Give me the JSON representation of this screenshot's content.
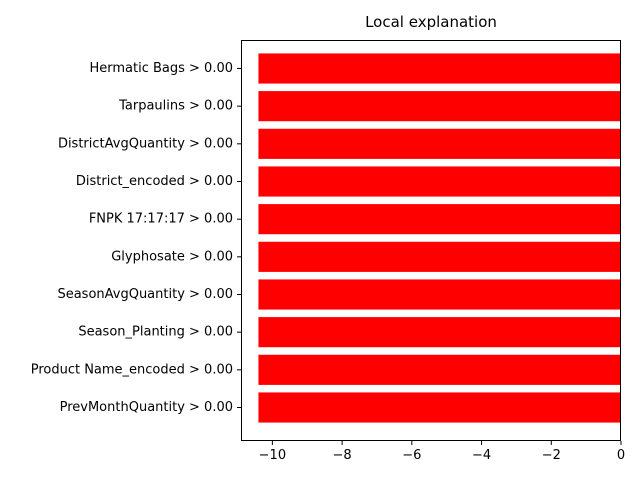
{
  "chart_data": {
    "type": "bar",
    "orientation": "horizontal",
    "title": "Local explanation",
    "xlabel": "",
    "ylabel": "",
    "categories": [
      "Hermatic Bags > 0.00",
      "Tarpaulins > 0.00",
      "DistrictAvgQuantity > 0.00",
      "District_encoded > 0.00",
      "FNPK 17:17:17 > 0.00",
      "Glyphosate > 0.00",
      "SeasonAvgQuantity > 0.00",
      "Season_Planting > 0.00",
      "Product Name_encoded > 0.00",
      "PrevMonthQuantity > 0.00"
    ],
    "values": [
      -10.4,
      -10.4,
      -10.4,
      -10.4,
      -10.4,
      -10.4,
      -10.4,
      -10.4,
      -10.4,
      -10.4
    ],
    "xlim": [
      -10.9,
      0
    ],
    "xticks": [
      -10,
      -8,
      -6,
      -4,
      -2,
      0
    ],
    "xtick_labels": [
      "−10",
      "−8",
      "−6",
      "−4",
      "−2",
      "0"
    ],
    "bar_color": "#ff0000",
    "grid": false,
    "legend": "none"
  }
}
